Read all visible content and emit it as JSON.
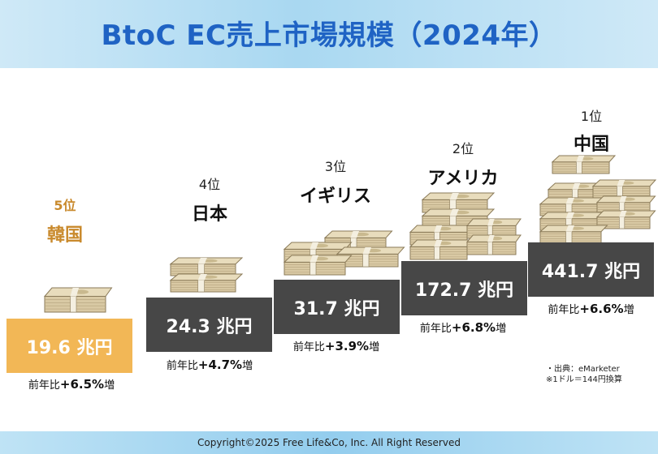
{
  "header": {
    "title": "BtoC EC売上市場規模（2024年）"
  },
  "chart_data": {
    "type": "bar",
    "title": "BtoC EC売上市場規模（2024年）",
    "categories": [
      "韓国",
      "日本",
      "イギリス",
      "アメリカ",
      "中国"
    ],
    "ranks": [
      "5位",
      "4位",
      "3位",
      "2位",
      "1位"
    ],
    "values": [
      19.6,
      24.3,
      31.7,
      172.7,
      441.7
    ],
    "unit": "兆円",
    "value_labels": [
      "19.6 兆円",
      "24.3 兆円",
      "31.7 兆円",
      "172.7 兆円",
      "441.7 兆円"
    ],
    "growth_prefix": "前年比",
    "growth": [
      "+6.5%",
      "+4.7%",
      "+3.9%",
      "+6.8%",
      "+6.6%"
    ],
    "growth_suffix": "増",
    "highlight_color": "#f2b756",
    "highlight_text_color": "#c98a2d",
    "bar_color": "#474747"
  },
  "note": {
    "line1": "・出典：eMarketer",
    "line2": "※1ドル＝144円換算"
  },
  "footer": {
    "copyright": "Copyright©2025 Free Life&Co, Inc. All Right Reserved"
  }
}
